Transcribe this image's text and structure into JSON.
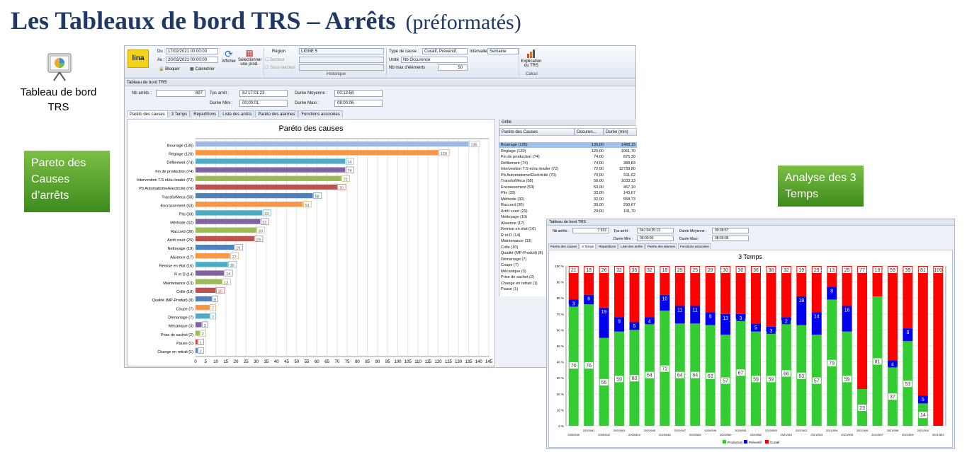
{
  "title": {
    "main": "Les Tableaux de bord TRS – Arrêts",
    "sub": "(préformatés)"
  },
  "app_icon_label": "Tableau de bord TRS",
  "labels": {
    "pareto": "Pareto des Causes d’arrêts",
    "three_times": "Analyse des 3 Temps"
  },
  "ribbon": {
    "du_label": "Du :",
    "du_value": "17/02/2021 00:00:00",
    "au_label": "Au :",
    "au_value": "20/03/2021 00:00:00",
    "bloquer": "Bloquer",
    "calendrier": "Calendrier",
    "afficher": "Afficher",
    "selectionner": "Sélectionner une prod.",
    "region_label": "Région",
    "region_value": "LIGNE 5",
    "secteur_label": "Secteur",
    "sous_secteur_label": "Sous-secteur",
    "historique": "Historique",
    "type_cause_label": "Type de cause :",
    "type_cause_value": "Curatif, Préventif,",
    "intervalle_label": "Intervalle",
    "intervalle_value": "Semaine",
    "unite_label": "Unité",
    "unite_value": "Nb Occurence",
    "nbmax_label": "Nb max d'éléments",
    "nbmax_value": "50",
    "explication": "Explication du TRS",
    "calcul": "Calcul"
  },
  "panel_title": "Tableau de bord TRS",
  "fields": {
    "nb_arrets_label": "Nb arrêts :",
    "nb_arrets": "897",
    "tps_arret_label": "Tps arrêt :",
    "tps_arret": "8J 17:01:23",
    "duree_moy_label": "Durée Moyenne :",
    "duree_moy": "00:13:58",
    "duree_mini_label": "Durée Mini :",
    "duree_mini": "00:00:01",
    "duree_maxi_label": "Durée Maxi :",
    "duree_maxi": "08:00:06"
  },
  "tabs": [
    "Paréto des causes",
    "3 Temps",
    "Répartitions",
    "Liste des arrêts",
    "Paréto des alarmes",
    "Fonctions associées"
  ],
  "grid": {
    "title": "Grille",
    "col1": "Paréto des Causes",
    "col2": "Occuren...",
    "col3": "Durée (min)",
    "rows": [
      [
        "Bourrage (135)",
        "135,00",
        "1488,15"
      ],
      [
        "Réglage (120)",
        "120,00",
        "1061,70"
      ],
      [
        "Fin de production (74)",
        "74,00",
        "875,30"
      ],
      [
        "Défilement (74)",
        "74,00",
        "388,83"
      ],
      [
        "Intervention T.S et/ou leader (72)",
        "72,00",
        "12739,80"
      ],
      [
        "Pb Automatisme/Electricité (70)",
        "70,00",
        "511,62"
      ],
      [
        "Transfo/Meca (58)",
        "58,00",
        "1033,13"
      ],
      [
        "Encrassement (53)",
        "53,00",
        "467,10"
      ],
      [
        "Plis (33)",
        "33,00",
        "143,67"
      ],
      [
        "Méthode (32)",
        "32,00",
        "558,73"
      ],
      [
        "Raccord (30)",
        "30,00",
        "290,67"
      ],
      [
        "Arrêt court (29)",
        "29,00",
        "191,70"
      ],
      [
        "Nettoyage (19)",
        "",
        ""
      ],
      [
        "Absence (17)",
        "",
        ""
      ],
      [
        "Remise en état (16)",
        "",
        ""
      ],
      [
        "R et D (14)",
        "",
        ""
      ],
      [
        "Maintenance (13)",
        "",
        ""
      ],
      [
        "Colle (10)",
        "",
        ""
      ],
      [
        "Qualité (MP-Produit) (8)",
        "",
        ""
      ],
      [
        "Démarrage (7)",
        "",
        ""
      ],
      [
        "Coupe (7)",
        "",
        ""
      ],
      [
        "Mécanique (3)",
        "",
        ""
      ],
      [
        "Prise de sachet (2)",
        "",
        ""
      ],
      [
        "Change en retrait (1)",
        "",
        ""
      ],
      [
        "Pause (1)",
        "",
        ""
      ]
    ]
  },
  "win2": {
    "panel_title": "Tableau de bord TRS",
    "nb_arrets_label": "Nb arrêts :",
    "nb_arrets": "7 932",
    "tps_arret_label": "Tps arrêt :",
    "tps_arret": "54J 04:35:13",
    "duree_moy_label": "Durée Moyenne :",
    "duree_moy": "00:09:57",
    "duree_mini_label": "Durée Mini :",
    "duree_mini": "00:00:00",
    "duree_maxi_label": "Durée Maxi :",
    "duree_maxi": "08:00:06"
  },
  "colors": {
    "title": "#1f3864",
    "production": "#33cc33",
    "preventif": "#0000ee",
    "curatif": "#ff0000"
  },
  "chart_data": [
    {
      "type": "bar",
      "orientation": "horizontal",
      "title": "Paréto des causes",
      "categories": [
        "Bourrage (135)",
        "Réglage (120)",
        "Défilement (74)",
        "Fin de production (74)",
        "Intervention T.S et/ou leader (72)",
        "Pb Automatisme/Electricité (70)",
        "Transfo/Meca (58)",
        "Encrassement (53)",
        "Plis (33)",
        "Méthode (32)",
        "Raccord (30)",
        "Arrêt court (29)",
        "Nettoyage (19)",
        "Absence (17)",
        "Remise en état (16)",
        "R et D (14)",
        "Maintenance (13)",
        "Colle (10)",
        "Qualité (MP-Produit) (8)",
        "Coupe (7)",
        "Démarrage (7)",
        "Mécanique (3)",
        "Prise de sachet (2)",
        "Pause (1)",
        "Change en retrait (1)"
      ],
      "values": [
        135,
        120,
        74,
        74,
        72,
        70,
        58,
        53,
        33,
        32,
        30,
        29,
        19,
        17,
        16,
        14,
        13,
        10,
        8,
        7,
        7,
        3,
        2,
        1,
        1
      ],
      "bar_colors": [
        "#9db8dc",
        "#f79646",
        "#4bacc6",
        "#8064a2",
        "#9bbb59",
        "#c0504d",
        "#4f81bd",
        "#f79646",
        "#4bacc6",
        "#8064a2",
        "#9bbb59",
        "#c0504d",
        "#4f81bd",
        "#f79646",
        "#4bacc6",
        "#8064a2",
        "#9bbb59",
        "#c0504d",
        "#4f81bd",
        "#f79646",
        "#4bacc6",
        "#8064a2",
        "#9bbb59",
        "#c0504d",
        "#4f81bd"
      ],
      "xlim": [
        0,
        145
      ],
      "xticks": [
        0,
        5,
        10,
        15,
        20,
        25,
        30,
        35,
        40,
        45,
        50,
        55,
        60,
        65,
        70,
        75,
        80,
        85,
        90,
        95,
        100,
        105,
        110,
        115,
        120,
        125,
        130,
        135,
        140,
        145
      ]
    },
    {
      "type": "bar",
      "stacked": true,
      "title": "3 Temps",
      "categories": [
        "2020/540",
        "2020/541",
        "2020/542",
        "2020/543",
        "2020/544",
        "2020/545",
        "2020/546",
        "2020/547",
        "2020/548",
        "2020/549",
        "2020/550",
        "2020/551",
        "2020/552",
        "2020/553",
        "2021/501",
        "2021/502",
        "2021/503",
        "2021/504",
        "2021/505",
        "2021/506",
        "2021/507",
        "2021/508",
        "2021/509",
        "2021/510",
        "2021/553"
      ],
      "series": [
        {
          "name": "Production",
          "values": [
            76,
            76,
            55,
            59,
            60,
            64,
            72,
            64,
            64,
            63,
            57,
            67,
            59,
            59,
            66,
            63,
            57,
            79,
            59,
            23,
            81,
            37,
            53,
            14,
            0
          ]
        },
        {
          "name": "Préventif",
          "values": [
            3,
            6,
            19,
            9,
            5,
            4,
            10,
            11,
            11,
            8,
            13,
            3,
            5,
            3,
            2,
            18,
            14,
            8,
            16,
            0,
            0,
            4,
            8,
            5,
            0
          ]
        },
        {
          "name": "Curatif",
          "values": [
            21,
            18,
            26,
            32,
            35,
            32,
            18,
            25,
            25,
            29,
            30,
            30,
            36,
            38,
            32,
            19,
            29,
            13,
            25,
            77,
            19,
            59,
            39,
            81,
            100
          ]
        }
      ],
      "yticks": [
        "0 %",
        "10 %",
        "20 %",
        "30 %",
        "40 %",
        "50 %",
        "60 %",
        "70 %",
        "80 %",
        "90 %",
        "100 %"
      ],
      "ylim": [
        0,
        100
      ],
      "legend": "bottom"
    }
  ]
}
